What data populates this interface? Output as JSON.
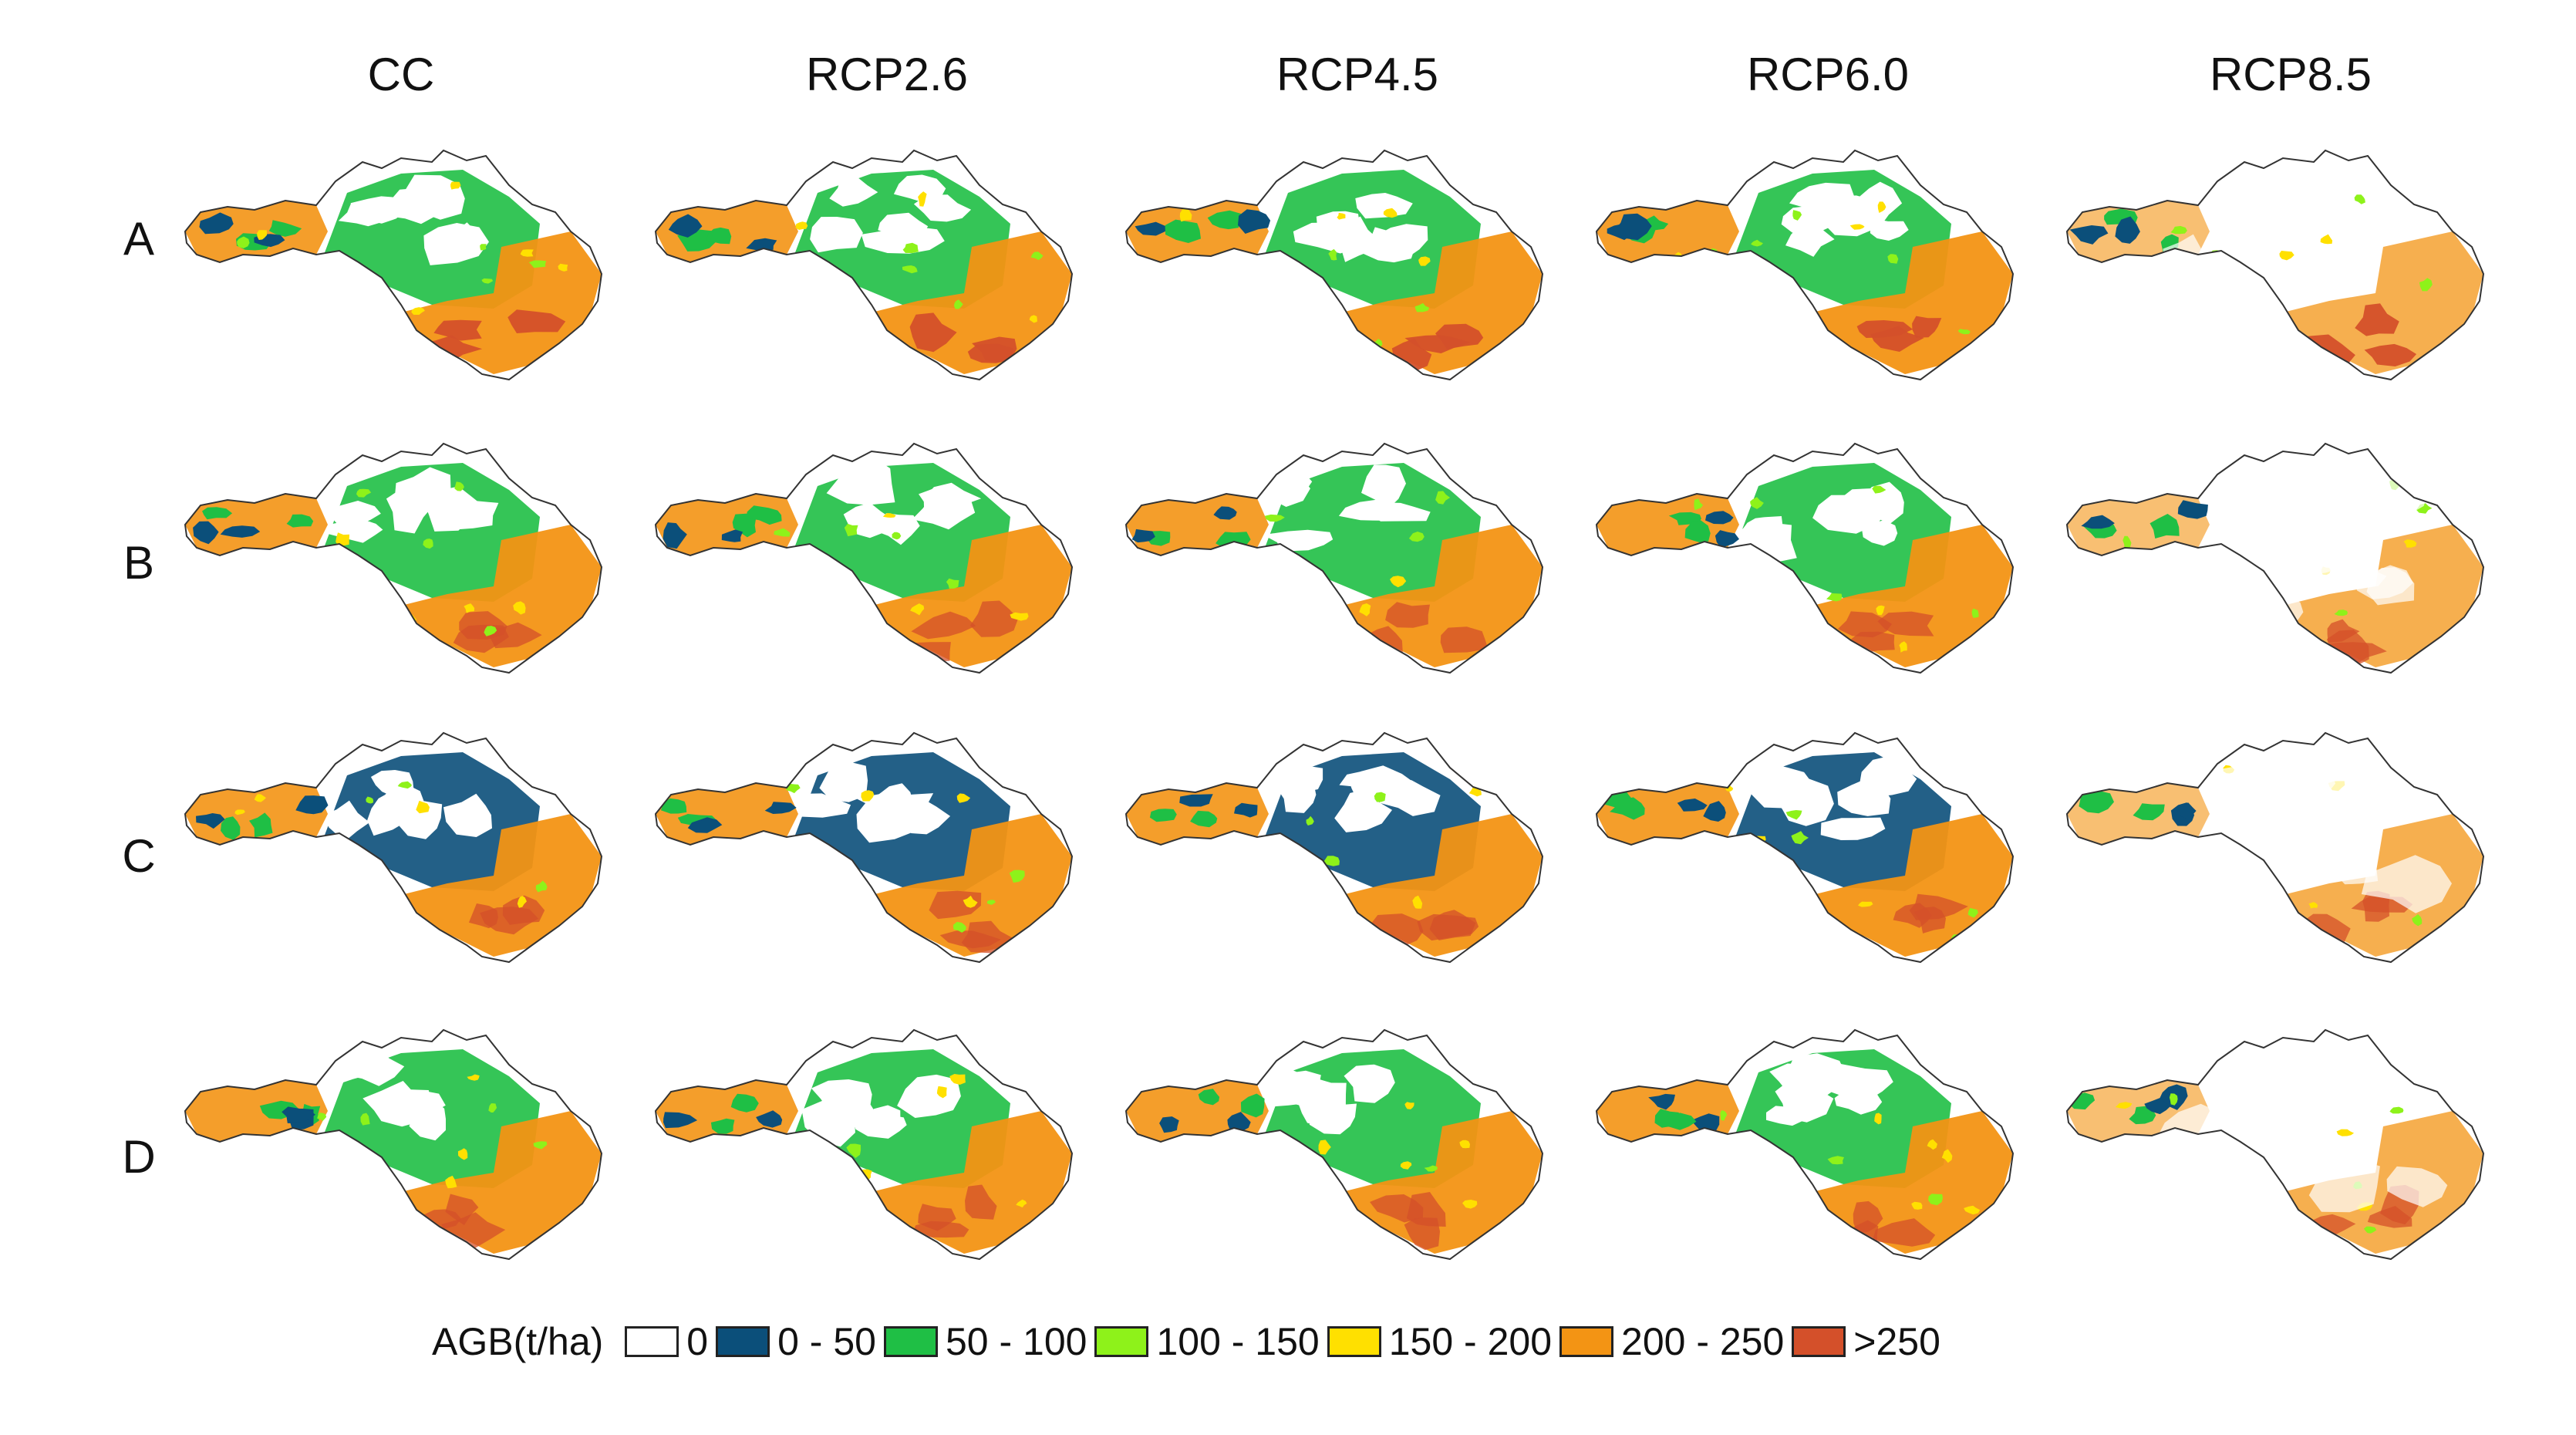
{
  "figure": {
    "columns": [
      {
        "id": "cc",
        "label": "CC"
      },
      {
        "id": "rcp26",
        "label": "RCP2.6"
      },
      {
        "id": "rcp45",
        "label": "RCP4.5"
      },
      {
        "id": "rcp60",
        "label": "RCP6.0"
      },
      {
        "id": "rcp85",
        "label": "RCP8.5"
      }
    ],
    "rows": [
      {
        "id": "a",
        "label": "A"
      },
      {
        "id": "b",
        "label": "B"
      },
      {
        "id": "c",
        "label": "C"
      },
      {
        "id": "d",
        "label": "D"
      }
    ]
  },
  "legend": {
    "title": "AGB(t/ha)",
    "items": [
      {
        "label": "0",
        "color": "#ffffff"
      },
      {
        "label": "0 - 50",
        "color": "#0b4f7a"
      },
      {
        "label": "50 - 100",
        "color": "#1fbf45"
      },
      {
        "label": "100 - 150",
        "color": "#8ef21a"
      },
      {
        "label": "150 - 200",
        "color": "#ffe000"
      },
      {
        "label": "200 - 250",
        "color": "#f39414"
      },
      {
        "label": ">250",
        "color": "#d4502a"
      }
    ]
  },
  "map_style": {
    "outline_color": "#333333",
    "region_dominant_class": [
      [
        "50 - 100",
        "50 - 100",
        "50 - 100",
        "50 - 100",
        "0"
      ],
      [
        "50 - 100",
        "50 - 100",
        "50 - 100",
        "50 - 100",
        "0"
      ],
      [
        "0 - 50",
        "0 - 50",
        "0 - 50",
        "0 - 50",
        "0"
      ],
      [
        "50 - 100",
        "50 - 100",
        "50 - 100",
        "50 - 100",
        "0"
      ]
    ]
  }
}
